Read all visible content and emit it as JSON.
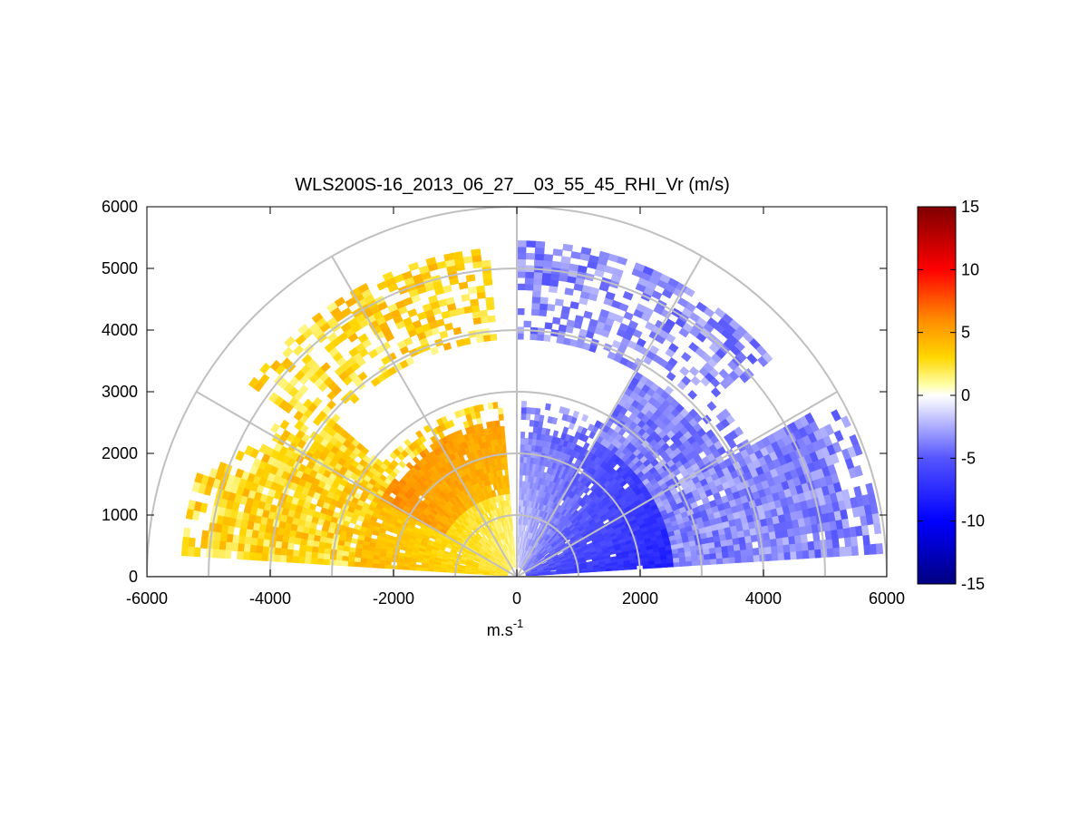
{
  "chart_data": {
    "type": "heatmap",
    "subtype": "polar-rhi-sector",
    "title": "WLS200S-16_2013_06_27__03_55_45_RHI_Vr (m/s)",
    "xlabel": "m.s",
    "xlabel_superscript": "-1",
    "ylabel": "",
    "xlim": [
      -6000,
      6000
    ],
    "ylim": [
      0,
      6000
    ],
    "xticks": [
      -6000,
      -4000,
      -2000,
      0,
      2000,
      4000,
      6000
    ],
    "yticks": [
      0,
      1000,
      2000,
      3000,
      4000,
      5000,
      6000
    ],
    "xtick_labels": [
      "-6000",
      "-4000",
      "-2000",
      "0",
      "2000",
      "4000",
      "6000"
    ],
    "ytick_labels": [
      "0",
      "1000",
      "2000",
      "3000",
      "4000",
      "5000",
      "6000"
    ],
    "polar_grid": {
      "range_rings": [
        1000,
        2000,
        3000,
        4000,
        5000,
        6000
      ],
      "spoke_angles_deg": [
        0,
        30,
        60,
        90,
        120,
        150,
        180
      ]
    },
    "colorbar": {
      "min": -15,
      "max": 15,
      "ticks": [
        -15,
        -10,
        -5,
        0,
        5,
        10,
        15
      ],
      "tick_labels": [
        "-15",
        "-10",
        "-5",
        "0",
        "5",
        "10",
        "15"
      ],
      "colormap_stops": [
        {
          "value": -15,
          "color": "#00007f"
        },
        {
          "value": -10,
          "color": "#0000ff"
        },
        {
          "value": -5,
          "color": "#5555ff"
        },
        {
          "value": -0.8,
          "color": "#e6e6ff"
        },
        {
          "value": 0,
          "color": "#ffffff"
        },
        {
          "value": 0.8,
          "color": "#ffffaa"
        },
        {
          "value": 3,
          "color": "#ffd700"
        },
        {
          "value": 6,
          "color": "#ff8c00"
        },
        {
          "value": 10,
          "color": "#ff0000"
        },
        {
          "value": 15,
          "color": "#7f0000"
        }
      ]
    },
    "regions": [
      {
        "name": "lower-left positive",
        "az_range_deg": [
          95,
          176
        ],
        "range_m": [
          200,
          5400
        ],
        "vr_approx": "2 to 8"
      },
      {
        "name": "lower-right negative",
        "az_range_deg": [
          4,
          88
        ],
        "range_m": [
          200,
          5900
        ],
        "vr_approx": "-2 to -10"
      },
      {
        "name": "upper-left positive",
        "az_range_deg": [
          95,
          140
        ],
        "range_m": [
          3900,
          5300
        ],
        "vr_approx": "1 to 5"
      },
      {
        "name": "upper-right negative",
        "az_range_deg": [
          40,
          90
        ],
        "range_m": [
          3900,
          5400
        ],
        "vr_approx": "-2 to -7"
      }
    ],
    "grid": true
  },
  "axes": {
    "xlabel_main": "m.s",
    "xlabel_sup": "-1"
  }
}
